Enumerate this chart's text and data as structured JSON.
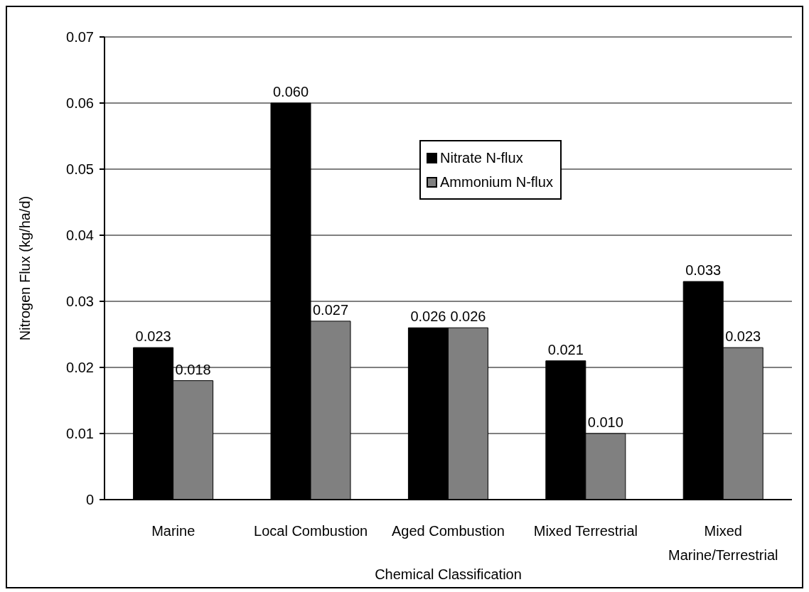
{
  "chart_data": {
    "type": "bar",
    "xlabel": "Chemical Classification",
    "ylabel": "Nitrogen Flux (kg/ha/d)",
    "categories": [
      "Marine",
      "Local Combustion",
      "Aged Combustion",
      "Mixed Terrestrial",
      "Mixed Marine/Terrestrial"
    ],
    "series": [
      {
        "name": "Nitrate N-flux",
        "color": "#000000",
        "values": [
          0.023,
          0.06,
          0.026,
          0.021,
          0.033
        ],
        "value_labels": [
          "0.023",
          "0.060",
          "0.026",
          "0.021",
          "0.033"
        ]
      },
      {
        "name": "Ammonium N-flux",
        "color": "#808080",
        "values": [
          0.018,
          0.027,
          0.026,
          0.01,
          0.023
        ],
        "value_labels": [
          "0.018",
          "0.027",
          "0.026",
          "0.010",
          "0.023"
        ]
      }
    ],
    "ylim": [
      0,
      0.07
    ],
    "yticks": [
      0,
      0.01,
      0.02,
      0.03,
      0.04,
      0.05,
      0.06,
      0.07
    ],
    "grid": "y",
    "legend": "top"
  }
}
